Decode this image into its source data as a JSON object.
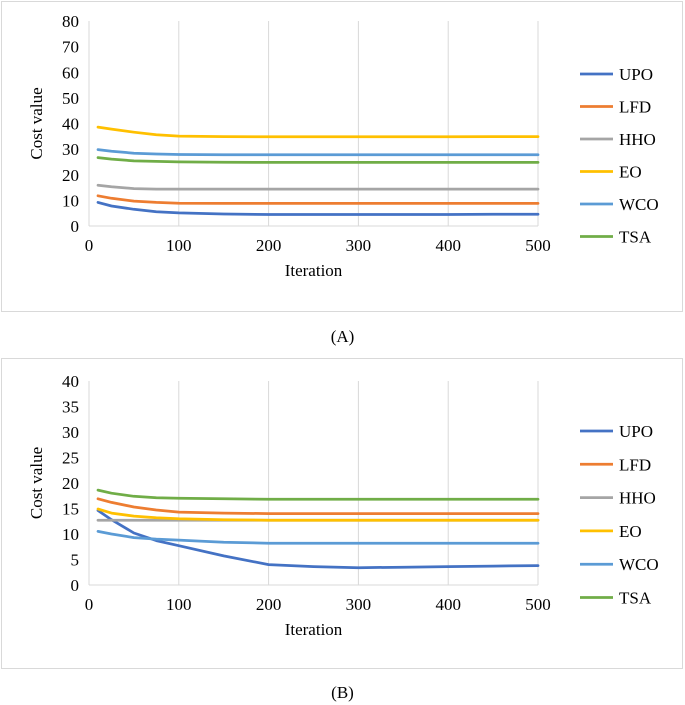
{
  "captions": [
    "(A)",
    "(B)"
  ],
  "chart_data": [
    {
      "type": "line",
      "panel_label": "(A)",
      "xlabel": "Iteration",
      "ylabel": "Cost value",
      "xlim": [
        0,
        500
      ],
      "ylim": [
        0,
        80
      ],
      "xticks": [
        0,
        100,
        200,
        300,
        400,
        500
      ],
      "yticks": [
        0,
        10,
        20,
        30,
        40,
        50,
        60,
        70,
        80
      ],
      "grid": "vertical",
      "legend": "right",
      "x": [
        10,
        25,
        50,
        75,
        100,
        150,
        200,
        250,
        300,
        350,
        400,
        450,
        500
      ],
      "series": [
        {
          "name": "UPO",
          "color": "#4472c4",
          "values": [
            9.2,
            7.8,
            6.5,
            5.6,
            5.1,
            4.7,
            4.5,
            4.5,
            4.5,
            4.5,
            4.5,
            4.6,
            4.6
          ]
        },
        {
          "name": "LFD",
          "color": "#ed7d31",
          "values": [
            11.8,
            10.8,
            9.7,
            9.2,
            8.9,
            8.8,
            8.8,
            8.8,
            8.8,
            8.8,
            8.8,
            8.8,
            8.8
          ]
        },
        {
          "name": "HHO",
          "color": "#a5a5a5",
          "values": [
            15.9,
            15.3,
            14.6,
            14.4,
            14.4,
            14.4,
            14.4,
            14.4,
            14.4,
            14.4,
            14.4,
            14.4,
            14.4
          ]
        },
        {
          "name": "EO",
          "color": "#ffc000",
          "values": [
            38.6,
            37.8,
            36.6,
            35.6,
            35.1,
            34.9,
            34.8,
            34.8,
            34.8,
            34.8,
            34.8,
            34.9,
            34.9
          ]
        },
        {
          "name": "WCO",
          "color": "#5b9bd5",
          "values": [
            29.8,
            29.2,
            28.4,
            28.1,
            27.9,
            27.8,
            27.8,
            27.8,
            27.8,
            27.8,
            27.8,
            27.8,
            27.8
          ]
        },
        {
          "name": "TSA",
          "color": "#70ad47",
          "values": [
            26.7,
            26.1,
            25.4,
            25.2,
            25.0,
            24.9,
            24.8,
            24.8,
            24.8,
            24.8,
            24.8,
            24.8,
            24.8
          ]
        }
      ]
    },
    {
      "type": "line",
      "panel_label": "(B)",
      "xlabel": "Iteration",
      "ylabel": "Cost value",
      "xlim": [
        0,
        500
      ],
      "ylim": [
        0,
        40
      ],
      "xticks": [
        0,
        100,
        200,
        300,
        400,
        500
      ],
      "yticks": [
        0,
        5,
        10,
        15,
        20,
        25,
        30,
        35,
        40
      ],
      "grid": "vertical",
      "legend": "right",
      "x": [
        10,
        25,
        50,
        75,
        100,
        150,
        200,
        250,
        300,
        350,
        400,
        450,
        500
      ],
      "series": [
        {
          "name": "UPO",
          "color": "#4472c4",
          "values": [
            14.6,
            12.8,
            10.2,
            8.7,
            7.7,
            5.7,
            4.0,
            3.6,
            3.4,
            3.5,
            3.6,
            3.7,
            3.8
          ]
        },
        {
          "name": "LFD",
          "color": "#ed7d31",
          "values": [
            16.9,
            16.2,
            15.3,
            14.7,
            14.3,
            14.1,
            14.0,
            14.0,
            14.0,
            14.0,
            14.0,
            14.0,
            14.0
          ]
        },
        {
          "name": "HHO",
          "color": "#a5a5a5",
          "values": [
            12.7,
            12.7,
            12.7,
            12.7,
            12.7,
            12.7,
            12.7,
            12.7,
            12.7,
            12.7,
            12.7,
            12.7,
            12.7
          ]
        },
        {
          "name": "EO",
          "color": "#ffc000",
          "values": [
            14.9,
            14.1,
            13.5,
            13.2,
            13.0,
            12.8,
            12.7,
            12.7,
            12.7,
            12.7,
            12.7,
            12.7,
            12.7
          ]
        },
        {
          "name": "WCO",
          "color": "#5b9bd5",
          "values": [
            10.5,
            10.0,
            9.3,
            9.0,
            8.8,
            8.4,
            8.2,
            8.2,
            8.2,
            8.2,
            8.2,
            8.2,
            8.2
          ]
        },
        {
          "name": "TSA",
          "color": "#70ad47",
          "values": [
            18.6,
            18.0,
            17.4,
            17.1,
            17.0,
            16.9,
            16.8,
            16.8,
            16.8,
            16.8,
            16.8,
            16.8,
            16.8
          ]
        }
      ]
    }
  ]
}
